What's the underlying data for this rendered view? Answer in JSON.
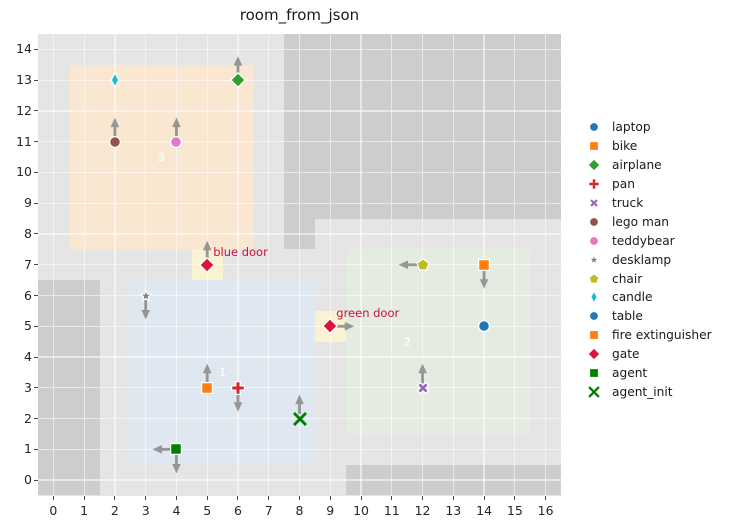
{
  "title": "room_from_json",
  "chart_data": {
    "type": "scatter",
    "title": "room_from_json",
    "xlabel": "",
    "ylabel": "",
    "xlim": [
      -0.5,
      16.5
    ],
    "ylim": [
      -0.5,
      14.5
    ],
    "grid": true,
    "background_color": "#e5e5e5",
    "grid_color": "rgba(255,255,255,0.55)",
    "wall_color": "#cdcdcd",
    "arrow_color": "#8f8f8f",
    "x_ticks": [
      0,
      1,
      2,
      3,
      4,
      5,
      6,
      7,
      8,
      9,
      10,
      11,
      12,
      13,
      14,
      15,
      16
    ],
    "y_ticks": [
      0,
      1,
      2,
      3,
      4,
      5,
      6,
      7,
      8,
      9,
      10,
      11,
      12,
      13,
      14
    ],
    "walls": [
      {
        "x0": 7.5,
        "y0": 8.5,
        "x1": 16.5,
        "y1": 14.5
      },
      {
        "x0": 7.5,
        "y0": 7.5,
        "x1": 8.5,
        "y1": 8.5
      },
      {
        "x0": -0.5,
        "y0": -0.5,
        "x1": 1.5,
        "y1": 6.5
      },
      {
        "x0": 9.5,
        "y0": -0.5,
        "x1": 16.5,
        "y1": 0.5
      }
    ],
    "rooms": [
      {
        "id": "3",
        "color": "#f9e7d1",
        "x0": 0.5,
        "y0": 7.5,
        "x1": 6.5,
        "y1": 13.5,
        "label_x": 3.5,
        "label_y": 10.5
      },
      {
        "id": "1",
        "color": "#dfe7f1",
        "x0": 2.5,
        "y0": 0.5,
        "x1": 8.5,
        "y1": 6.5,
        "label_x": 5.5,
        "label_y": 3.5
      },
      {
        "id": "2",
        "color": "#e4ebe0",
        "x0": 9.5,
        "y0": 1.5,
        "x1": 15.5,
        "y1": 7.5,
        "label_x": 11.5,
        "label_y": 4.5
      }
    ],
    "doors": [
      {
        "label": "blue door",
        "x": 5,
        "y": 7,
        "rect": [
          4.5,
          6.5,
          5.5,
          7.5
        ],
        "rect_color": "#fbf2d2",
        "shape": "diamond",
        "color": "#dc143c",
        "facing": [
          "N"
        ]
      },
      {
        "label": "green door",
        "x": 9,
        "y": 5,
        "rect": [
          8.5,
          4.5,
          9.5,
          5.5
        ],
        "rect_color": "#fbf2d2",
        "shape": "diamond",
        "color": "#dc143c",
        "facing": [
          "E"
        ]
      }
    ],
    "objects": [
      {
        "name": "candle",
        "shape": "thin_diamond",
        "color": "#17becf",
        "x": 2,
        "y": 13,
        "facing": []
      },
      {
        "name": "airplane",
        "shape": "diamond",
        "color": "#2ca02c",
        "x": 6,
        "y": 13,
        "facing": [
          "N"
        ]
      },
      {
        "name": "lego man",
        "shape": "circle",
        "color": "#8c564b",
        "x": 2,
        "y": 11,
        "facing": [
          "N"
        ]
      },
      {
        "name": "teddybear",
        "shape": "circle",
        "color": "#e377c2",
        "x": 4,
        "y": 11,
        "facing": [
          "N"
        ]
      },
      {
        "name": "desklamp",
        "shape": "star",
        "color": "#7f7f7f",
        "x": 3,
        "y": 6,
        "facing": [
          "S"
        ]
      },
      {
        "name": "bike",
        "shape": "square",
        "color": "#ff7f0e",
        "x": 5,
        "y": 3,
        "facing": [
          "N"
        ]
      },
      {
        "name": "pan",
        "shape": "plus",
        "color": "#d62728",
        "x": 6,
        "y": 3,
        "facing": [
          "S"
        ]
      },
      {
        "name": "agent_init",
        "shape": "x_thin",
        "color": "#008000",
        "x": 8,
        "y": 2,
        "facing": [
          "N"
        ]
      },
      {
        "name": "agent",
        "shape": "square",
        "color": "#008000",
        "x": 4,
        "y": 1,
        "facing": [
          "W",
          "S"
        ]
      },
      {
        "name": "chair",
        "shape": "pentagon",
        "color": "#bcbd22",
        "x": 12,
        "y": 7,
        "facing": [
          "W"
        ]
      },
      {
        "name": "fire extinguisher",
        "shape": "square",
        "color": "#ff7f0e",
        "x": 14,
        "y": 7,
        "facing": [
          "S"
        ]
      },
      {
        "name": "laptop",
        "shape": "circle",
        "color": "#1f77b4",
        "x": 14,
        "y": 5,
        "facing": []
      },
      {
        "name": "truck",
        "shape": "x_thick",
        "color": "#9467bd",
        "x": 12,
        "y": 3,
        "facing": [
          "N"
        ]
      }
    ],
    "legend": {
      "position": "right",
      "items": [
        {
          "label": "laptop",
          "shape": "circle",
          "color": "#1f77b4"
        },
        {
          "label": "bike",
          "shape": "square",
          "color": "#ff7f0e"
        },
        {
          "label": "airplane",
          "shape": "diamond",
          "color": "#2ca02c"
        },
        {
          "label": "pan",
          "shape": "plus",
          "color": "#d62728"
        },
        {
          "label": "truck",
          "shape": "x_thick",
          "color": "#9467bd"
        },
        {
          "label": "lego man",
          "shape": "circle",
          "color": "#8c564b"
        },
        {
          "label": "teddybear",
          "shape": "circle",
          "color": "#e377c2"
        },
        {
          "label": "desklamp",
          "shape": "star",
          "color": "#7f7f7f"
        },
        {
          "label": "chair",
          "shape": "pentagon",
          "color": "#bcbd22"
        },
        {
          "label": "candle",
          "shape": "thin_diamond",
          "color": "#17becf"
        },
        {
          "label": "table",
          "shape": "circle",
          "color": "#1f77b4"
        },
        {
          "label": "fire extinguisher",
          "shape": "square",
          "color": "#ff7f0e"
        },
        {
          "label": "gate",
          "shape": "diamond",
          "color": "#dc143c"
        },
        {
          "label": "agent",
          "shape": "square",
          "color": "#008000"
        },
        {
          "label": "agent_init",
          "shape": "x_thin",
          "color": "#008000"
        }
      ]
    }
  }
}
